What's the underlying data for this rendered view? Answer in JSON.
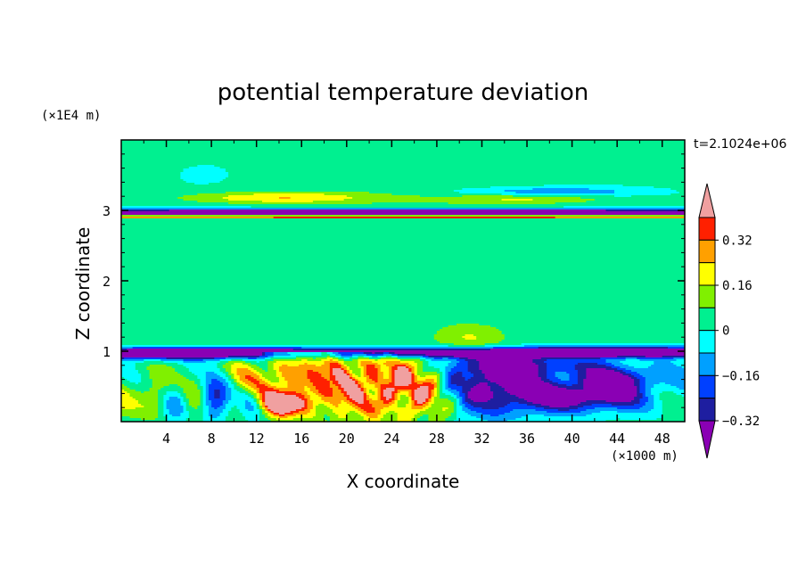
{
  "chart_data": {
    "type": "heatmap",
    "title": "potential temperature deviation",
    "time_label": "t=2.1024e+06",
    "xlabel": "X coordinate",
    "ylabel": "Z coordinate",
    "x_unit": "(×1000 m)",
    "y_unit": "(×1E4 m)",
    "xlim": [
      0,
      50
    ],
    "ylim": [
      0,
      4
    ],
    "x_ticks": [
      4,
      8,
      12,
      16,
      20,
      24,
      28,
      32,
      36,
      40,
      44,
      48
    ],
    "x_tick_labels": [
      "4",
      "8",
      "12",
      "16",
      "20",
      "24",
      "28",
      "32",
      "36",
      "40",
      "44",
      "48"
    ],
    "y_ticks": [
      1,
      2,
      3
    ],
    "y_tick_labels": [
      "1",
      "2",
      "3"
    ],
    "colorbar": {
      "levels": [
        -0.4,
        -0.32,
        -0.24,
        -0.16,
        -0.08,
        0,
        0.08,
        0.16,
        0.24,
        0.32,
        0.4
      ],
      "tick_values": [
        0.32,
        0.16,
        0,
        -0.16,
        -0.32
      ],
      "tick_labels": [
        "0.32",
        "0.16",
        "0",
        "−0.16",
        "−0.32"
      ],
      "colors": [
        "#8a00b4",
        "#1e1ea0",
        "#0040ff",
        "#00a0ff",
        "#00ffff",
        "#00f090",
        "#80f000",
        "#ffff00",
        "#ffa000",
        "#ff2000",
        "#f0a0a0"
      ],
      "extend": "both"
    },
    "features": [
      {
        "name": "background",
        "value": 0.04
      },
      {
        "name": "upper-stable-band-negative",
        "z": 2.95,
        "value": -0.36
      },
      {
        "name": "upper-band-warm-anomalies",
        "z": 3.1,
        "value": 0.2
      },
      {
        "name": "lower-inversion-negative",
        "z": 1.0,
        "value": -0.3
      },
      {
        "name": "boundary-layer-warm-cells",
        "x_range": [
          10,
          30
        ],
        "z_range": [
          0,
          1
        ],
        "value": 0.34
      },
      {
        "name": "boundary-layer-cold-plume",
        "x_range": [
          29,
          46
        ],
        "z_range": [
          0.1,
          1
        ],
        "value": -0.34
      }
    ]
  }
}
